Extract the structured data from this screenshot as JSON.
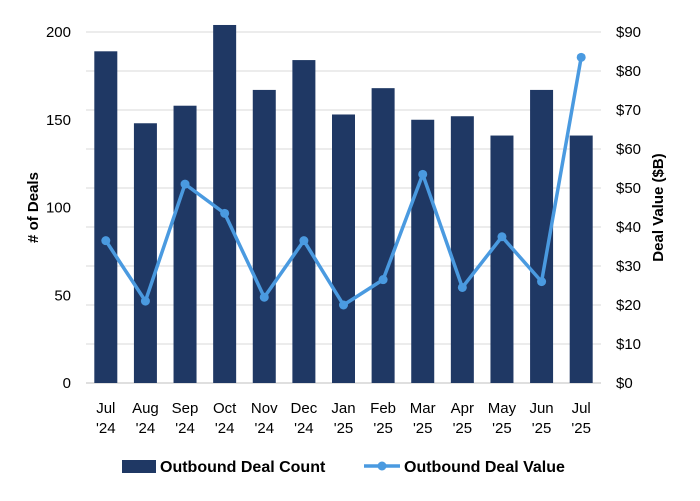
{
  "chart_data": {
    "type": "bar",
    "categories": [
      [
        "Jul",
        "'24"
      ],
      [
        "Aug",
        "'24"
      ],
      [
        "Sep",
        "'24"
      ],
      [
        "Oct",
        "'24"
      ],
      [
        "Nov",
        "'24"
      ],
      [
        "Dec",
        "'24"
      ],
      [
        "Jan",
        "'25"
      ],
      [
        "Feb",
        "'25"
      ],
      [
        "Mar",
        "'25"
      ],
      [
        "Apr",
        "'25"
      ],
      [
        "May",
        "'25"
      ],
      [
        "Jun",
        "'25"
      ],
      [
        "Jul",
        "'25"
      ]
    ],
    "series": [
      {
        "name": "Outbound Deal Count",
        "type": "bar",
        "axis": "left",
        "color": "#1f3864",
        "values": [
          189,
          148,
          158,
          204,
          167,
          184,
          153,
          168,
          150,
          152,
          141,
          167,
          141
        ]
      },
      {
        "name": "Outbound Deal Value",
        "type": "line",
        "axis": "right",
        "color": "#4a9ae0",
        "values": [
          36.5,
          21,
          51,
          43.5,
          22,
          36.5,
          20,
          26.5,
          53.5,
          24.5,
          37.5,
          26,
          83.5
        ]
      }
    ],
    "ylabel": "# of Deals",
    "y2label": "Deal Value ($B)",
    "ylim": [
      0,
      200
    ],
    "y2lim": [
      0,
      90
    ],
    "yticks": [
      0,
      50,
      100,
      150,
      200
    ],
    "y2ticks": [
      0,
      10,
      20,
      30,
      40,
      50,
      60,
      70,
      80,
      90
    ],
    "y2tick_labels": [
      "$0",
      "$10",
      "$20",
      "$30",
      "$40",
      "$50",
      "$60",
      "$70",
      "$80",
      "$90"
    ],
    "grid": true,
    "legend": "bottom"
  }
}
